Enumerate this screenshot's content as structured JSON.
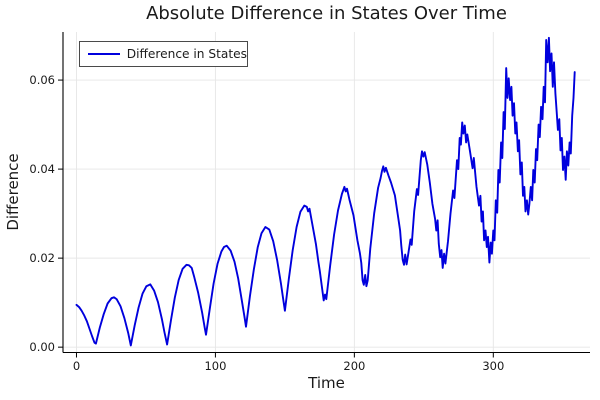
{
  "chart_data": {
    "type": "line",
    "title": "Absolute Difference in States Over Time",
    "xlabel": "Time",
    "ylabel": "Difference",
    "grid": true,
    "legend": {
      "position": "top-left",
      "entries": [
        {
          "label": "Difference in States",
          "color": "#0000dd"
        }
      ]
    },
    "xlim": [
      -9.7,
      369.6
    ],
    "ylim": [
      -0.0012,
      0.0708
    ],
    "xticks": [
      {
        "value": 0,
        "label": "0"
      },
      {
        "value": 100,
        "label": "100"
      },
      {
        "value": 200,
        "label": "200"
      },
      {
        "value": 300,
        "label": "300"
      }
    ],
    "yticks": [
      {
        "value": 0,
        "label": "0.00"
      },
      {
        "value": 0.02,
        "label": "0.02"
      },
      {
        "value": 0.04,
        "label": "0.04"
      },
      {
        "value": 0.06,
        "label": "0.06"
      }
    ],
    "series": [
      {
        "name": "Difference in States",
        "color": "#0000dd",
        "x": [
          0,
          1.9,
          3.7,
          5.6,
          7.5,
          9.3,
          11.2,
          13.0,
          14.0,
          16.8,
          19.6,
          22.4,
          25.2,
          27.0,
          28.9,
          31.7,
          34.5,
          37.3,
          39.1,
          41.9,
          44.7,
          47.5,
          50.3,
          53.1,
          55.9,
          58.7,
          61.5,
          63.3,
          65.2,
          68.0,
          70.8,
          73.6,
          76.4,
          79.2,
          81.0,
          82.9,
          84.8,
          87.6,
          90.4,
          92.2,
          93.2,
          96.0,
          98.7,
          101.5,
          104.3,
          106.2,
          108.1,
          110.9,
          113.7,
          116.4,
          119.2,
          121.1,
          122.0,
          124.8,
          127.6,
          130.4,
          133.2,
          136.0,
          138.8,
          141.6,
          144.4,
          147.2,
          149.0,
          150.0,
          152.8,
          155.6,
          158.4,
          161.2,
          164.0,
          165.8,
          166.7,
          167.7,
          169.6,
          172.3,
          174.2,
          175.1,
          177.0,
          177.9,
          178.9,
          179.8,
          182.6,
          185.4,
          188.2,
          191.0,
          192.8,
          193.8,
          194.7,
          196.6,
          199.4,
          202.2,
          204.0,
          205.0,
          205.9,
          206.8,
          207.8,
          208.7,
          209.6,
          211.5,
          214.3,
          217.1,
          218.9,
          219.9,
          220.8,
          221.7,
          222.7,
          224.5,
          226.4,
          229.2,
          232.0,
          232.9,
          233.8,
          234.8,
          235.7,
          236.6,
          237.6,
          238.5,
          240.4,
          241.3,
          243.1,
          245.0,
          245.9,
          247.8,
          248.7,
          249.7,
          250.6,
          252.5,
          254.3,
          256.2,
          258.1,
          259.0,
          259.9,
          260.8,
          261.8,
          262.7,
          263.6,
          264.6,
          265.5,
          267.4,
          269.2,
          271.1,
          272.0,
          273.9,
          274.8,
          275.8,
          276.7,
          277.6,
          278.5,
          279.5,
          280.4,
          281.3,
          283.2,
          285.1,
          286.0,
          287.9,
          289.7,
          290.7,
          291.6,
          292.5,
          293.4,
          294.4,
          295.3,
          296.2,
          297.2,
          298.1,
          299.0,
          300.0,
          300.9,
          301.8,
          302.8,
          303.7,
          304.6,
          305.6,
          306.5,
          307.4,
          308.3,
          309.3,
          310.2,
          311.1,
          312.1,
          313.0,
          313.9,
          314.9,
          315.8,
          316.7,
          317.7,
          318.6,
          319.5,
          320.5,
          321.4,
          322.3,
          323.2,
          324.2,
          325.1,
          326.0,
          327.0,
          327.9,
          328.8,
          329.8,
          330.7,
          331.6,
          332.6,
          333.5,
          334.4,
          335.4,
          336.3,
          337.2,
          338.1,
          339.1,
          340.0,
          340.9,
          341.9,
          342.8,
          343.7,
          344.7,
          345.6,
          346.5,
          347.5,
          348.4,
          349.3,
          350.2,
          351.2,
          352.1,
          353.0,
          354.0,
          354.9,
          355.8,
          356.8,
          357.7,
          358.6
        ],
        "y": [
          0.0095,
          0.009,
          0.0082,
          0.0071,
          0.0058,
          0.0042,
          0.0025,
          0.001,
          0.0008,
          0.0044,
          0.0074,
          0.0098,
          0.011,
          0.0112,
          0.0108,
          0.0092,
          0.0065,
          0.0031,
          0.0004,
          0.0049,
          0.0089,
          0.012,
          0.0137,
          0.0141,
          0.0127,
          0.0101,
          0.0063,
          0.0034,
          0.0006,
          0.0061,
          0.0111,
          0.0151,
          0.0176,
          0.0185,
          0.0184,
          0.0178,
          0.0157,
          0.0122,
          0.0078,
          0.0045,
          0.0028,
          0.0088,
          0.0143,
          0.0187,
          0.0215,
          0.0225,
          0.0228,
          0.0217,
          0.0192,
          0.0154,
          0.0101,
          0.0065,
          0.0046,
          0.0114,
          0.0174,
          0.0224,
          0.0256,
          0.027,
          0.0264,
          0.0238,
          0.0196,
          0.0142,
          0.0103,
          0.0082,
          0.0153,
          0.0218,
          0.027,
          0.0304,
          0.0318,
          0.0315,
          0.0305,
          0.0311,
          0.0279,
          0.0232,
          0.019,
          0.0171,
          0.0127,
          0.0105,
          0.0118,
          0.0108,
          0.0184,
          0.0253,
          0.0307,
          0.0344,
          0.036,
          0.035,
          0.0356,
          0.033,
          0.0296,
          0.024,
          0.0211,
          0.0189,
          0.015,
          0.014,
          0.0162,
          0.0137,
          0.015,
          0.0222,
          0.0301,
          0.0358,
          0.038,
          0.0396,
          0.0406,
          0.0394,
          0.0403,
          0.0386,
          0.037,
          0.0341,
          0.0282,
          0.0262,
          0.0228,
          0.0196,
          0.0185,
          0.0208,
          0.0186,
          0.0203,
          0.0242,
          0.023,
          0.0305,
          0.0355,
          0.0342,
          0.042,
          0.044,
          0.0428,
          0.0438,
          0.041,
          0.037,
          0.0322,
          0.0288,
          0.0262,
          0.0285,
          0.0232,
          0.0202,
          0.0218,
          0.0178,
          0.021,
          0.0188,
          0.0238,
          0.03,
          0.0352,
          0.0335,
          0.042,
          0.04,
          0.047,
          0.0455,
          0.0505,
          0.048,
          0.0498,
          0.046,
          0.0478,
          0.044,
          0.0402,
          0.0425,
          0.036,
          0.0318,
          0.034,
          0.0282,
          0.0305,
          0.024,
          0.0262,
          0.0225,
          0.0248,
          0.019,
          0.0235,
          0.021,
          0.0262,
          0.024,
          0.033,
          0.0302,
          0.0398,
          0.037,
          0.046,
          0.0425,
          0.0528,
          0.049,
          0.0627,
          0.056,
          0.0604,
          0.0555,
          0.0585,
          0.052,
          0.0548,
          0.048,
          0.0505,
          0.044,
          0.0465,
          0.0388,
          0.0415,
          0.034,
          0.036,
          0.0305,
          0.033,
          0.0298,
          0.0322,
          0.036,
          0.033,
          0.0398,
          0.037,
          0.0445,
          0.042,
          0.05,
          0.0472,
          0.054,
          0.0512,
          0.0585,
          0.055,
          0.069,
          0.064,
          0.0695,
          0.062,
          0.066,
          0.0585,
          0.064,
          0.057,
          0.0528,
          0.0488,
          0.0512,
          0.0442,
          0.047,
          0.0398,
          0.0428,
          0.0376,
          0.044,
          0.0408,
          0.046,
          0.0435,
          0.052,
          0.056,
          0.0618
        ]
      }
    ]
  },
  "colors": {
    "line": "#0000dd",
    "grid": "#e6e6e6",
    "axis": "#000000",
    "text": "#1a1a1a",
    "legend_border": "#4a4a4a",
    "background": "#ffffff"
  }
}
